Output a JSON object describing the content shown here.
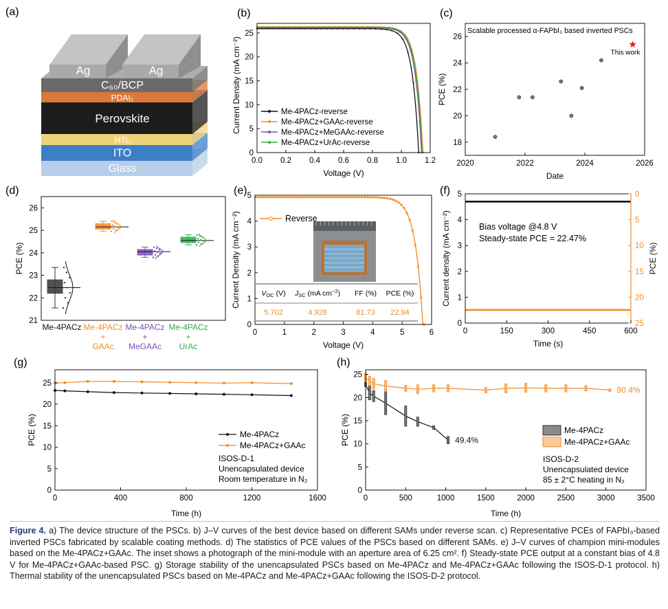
{
  "chart_data": [
    {
      "panel": "(a)",
      "type": "diagram",
      "layers": [
        {
          "label": "Ag",
          "color": "#a9a9a9"
        },
        {
          "label": "Ag",
          "color": "#a9a9a9"
        },
        {
          "label": "C60/BCP",
          "color": "#6a6a6a"
        },
        {
          "label": "PDAI2",
          "color": "#d9783a"
        },
        {
          "label": "Perovskite",
          "color": "#1c1c1c"
        },
        {
          "label": "HTL",
          "color": "#f0d27a"
        },
        {
          "label": "ITO",
          "color": "#3d7fc7"
        },
        {
          "label": "Glass",
          "color": "#b8cde8"
        }
      ]
    },
    {
      "panel": "(b)",
      "type": "line",
      "xlabel": "Voltage (V)",
      "ylabel": "Current Density (mA cm⁻²)",
      "xlim": [
        0,
        1.2
      ],
      "ylim": [
        0,
        27
      ],
      "xticks": [
        "0.0",
        "0.2",
        "0.4",
        "0.6",
        "0.8",
        "1.0",
        "1.2"
      ],
      "yticks": [
        "0",
        "5",
        "10",
        "15",
        "20",
        "25"
      ],
      "legend": "bottom-left",
      "series": [
        {
          "name": "Me-4PACz-reverse",
          "color": "#111111",
          "jsc": 25.9,
          "voc": 1.12
        },
        {
          "name": "Me-4PACz+GAAc-reverse",
          "color": "#f28c28",
          "jsc": 26.3,
          "voc": 1.15
        },
        {
          "name": "Me-4PACz+MeGAAc-reverse",
          "color": "#7a4fb4",
          "jsc": 26.1,
          "voc": 1.14
        },
        {
          "name": "Me-4PACz+UrAc-reverse",
          "color": "#2fae4a",
          "jsc": 26.2,
          "voc": 1.145
        }
      ]
    },
    {
      "panel": "(c)",
      "type": "scatter",
      "title": "Scalable processed α-FAPbI₃ based inverted PSCs",
      "xlabel": "Date",
      "ylabel": "PCE (%)",
      "xlim": [
        2020,
        2026
      ],
      "ylim": [
        17,
        27
      ],
      "xticks": [
        "2020",
        "2022",
        "2024",
        "2026"
      ],
      "yticks": [
        "18",
        "20",
        "22",
        "24",
        "26"
      ],
      "points": [
        {
          "x": 2021.0,
          "y": 18.4
        },
        {
          "x": 2021.8,
          "y": 21.4
        },
        {
          "x": 2022.25,
          "y": 21.4
        },
        {
          "x": 2023.2,
          "y": 22.6
        },
        {
          "x": 2023.55,
          "y": 20.0
        },
        {
          "x": 2023.9,
          "y": 22.1
        },
        {
          "x": 2024.55,
          "y": 24.2
        }
      ],
      "highlight": {
        "x": 2025.6,
        "y": 25.4,
        "label": "This work",
        "color": "#e31b23"
      }
    },
    {
      "panel": "(d)",
      "type": "box",
      "ylabel": "PCE (%)",
      "ylim": [
        21,
        26.5
      ],
      "yticks": [
        "21",
        "22",
        "23",
        "24",
        "25",
        "26"
      ],
      "categories": [
        "Me-4PACz",
        "Me-4PACz\n+\nGAAc",
        "Me-4PACz\n+\nMeGAAc",
        "Me-4PACz\n+\nUrAc"
      ],
      "groups": [
        {
          "name": "Me-4PACz",
          "color": "#333333",
          "min": 21.55,
          "q1": 22.2,
          "median": 22.45,
          "q3": 22.8,
          "max": 23.35
        },
        {
          "name": "Me-4PACz+GAAc",
          "color": "#f28c28",
          "min": 24.95,
          "q1": 25.05,
          "median": 25.15,
          "q3": 25.3,
          "max": 25.4
        },
        {
          "name": "Me-4PACz+MeGAAc",
          "color": "#7a4fb4",
          "min": 23.8,
          "q1": 23.9,
          "median": 24.05,
          "q3": 24.15,
          "max": 24.25
        },
        {
          "name": "Me-4PACz+UrAc",
          "color": "#2fae4a",
          "min": 24.35,
          "q1": 24.45,
          "median": 24.55,
          "q3": 24.7,
          "max": 24.8
        }
      ]
    },
    {
      "panel": "(e)",
      "type": "line",
      "xlabel": "Voltage (V)",
      "ylabel": "Current Density (mA cm⁻²)",
      "xlim": [
        0,
        6
      ],
      "ylim": [
        0,
        5
      ],
      "xticks": [
        "0",
        "1",
        "2",
        "3",
        "4",
        "5",
        "6"
      ],
      "yticks": [
        "0",
        "1",
        "2",
        "3",
        "4",
        "5"
      ],
      "series": [
        {
          "name": "Reverse",
          "color": "#f28c28",
          "jsc": 4.928,
          "voc": 5.702
        }
      ],
      "table": {
        "headers": [
          "V_OC (V)",
          "J_SC (mA cm⁻²)",
          "FF (%)",
          "PCE (%)"
        ],
        "values": [
          "5.702",
          "4.928",
          "81.73",
          "22.94"
        ]
      }
    },
    {
      "panel": "(f)",
      "type": "line",
      "xlabel": "Time (s)",
      "ylabel": "Current density (mA cm⁻²)",
      "y2label": "PCE (%)",
      "xlim": [
        0,
        600
      ],
      "ylim": [
        0,
        5
      ],
      "y2lim": [
        25,
        0
      ],
      "xticks": [
        "0",
        "150",
        "300",
        "450",
        "600"
      ],
      "yticks": [
        "0",
        "1",
        "2",
        "3",
        "4",
        "5"
      ],
      "y2ticks": [
        "0",
        "5",
        "10",
        "15",
        "20",
        "25"
      ],
      "annotation": [
        "Bias voltage @4.8 V",
        "Steady-state PCE = 22.47%"
      ],
      "series": [
        {
          "name": "Current density",
          "color": "#111111",
          "value": 4.7
        },
        {
          "name": "PCE",
          "color": "#f28c28",
          "value": 22.47
        }
      ]
    },
    {
      "panel": "(g)",
      "type": "line",
      "xlabel": "Time (h)",
      "ylabel": "PCE (%)",
      "xlim": [
        0,
        1600
      ],
      "ylim": [
        0,
        28
      ],
      "xticks": [
        "0",
        "400",
        "800",
        "1200",
        "1600"
      ],
      "yticks": [
        "0",
        "5",
        "10",
        "15",
        "20",
        "25"
      ],
      "legend": "bottom-right",
      "notes": [
        "ISOS-D-1",
        "Unencapsulated device",
        "Room temperature in N₂"
      ],
      "series": [
        {
          "name": "Me-4PACz",
          "color": "#111111",
          "x": [
            0,
            60,
            200,
            360,
            530,
            700,
            860,
            1030,
            1200,
            1440
          ],
          "y": [
            23.2,
            23.1,
            22.9,
            22.7,
            22.6,
            22.5,
            22.4,
            22.3,
            22.2,
            22.0
          ]
        },
        {
          "name": "Me-4PACz+GAAc",
          "color": "#f28c28",
          "x": [
            0,
            60,
            200,
            360,
            530,
            700,
            860,
            1030,
            1200,
            1440
          ],
          "y": [
            24.9,
            25.0,
            25.3,
            25.3,
            25.2,
            25.1,
            25.0,
            24.9,
            25.0,
            24.8
          ]
        }
      ]
    },
    {
      "panel": "(h)",
      "type": "line",
      "xlabel": "Time (h)",
      "ylabel": "PCE (%)",
      "xlim": [
        0,
        3500
      ],
      "ylim": [
        0,
        26
      ],
      "xticks": [
        "0",
        "500",
        "1000",
        "1500",
        "2000",
        "2500",
        "3000",
        "3500"
      ],
      "yticks": [
        "0",
        "5",
        "10",
        "15",
        "20",
        "25"
      ],
      "notes": [
        "ISOS-D-2",
        "Unencapsulated device",
        "85 ± 2°C heating in N₂"
      ],
      "series": [
        {
          "name": "Me-4PACz",
          "color": "#111111",
          "end_label": "49.4%",
          "x": [
            0,
            50,
            100,
            250,
            500,
            650,
            850,
            1030
          ],
          "y": [
            22.8,
            21.0,
            20.3,
            18.8,
            16.0,
            14.8,
            13.5,
            10.8
          ],
          "err": [
            0.4,
            1.5,
            1.2,
            2.5,
            2.2,
            1.0,
            0.4,
            0.8
          ]
        },
        {
          "name": "Me-4PACz+GAAc",
          "color": "#f28c28",
          "end_label": "90.4%",
          "x": [
            0,
            50,
            100,
            250,
            500,
            650,
            850,
            1030,
            1500,
            1750,
            2000,
            2250,
            2500,
            2750,
            3050
          ],
          "y": [
            24.3,
            23.6,
            23.0,
            22.5,
            22.0,
            21.8,
            22.0,
            22.0,
            21.6,
            22.0,
            22.1,
            22.0,
            22.0,
            22.0,
            21.6
          ],
          "err": [
            1.0,
            1.0,
            1.2,
            1.2,
            0.7,
            1.0,
            0.8,
            0.8,
            0.6,
            1.0,
            1.0,
            0.8,
            0.8,
            0.6,
            0.3
          ]
        }
      ]
    }
  ],
  "figure": {
    "panels": [
      "(a)",
      "(b)",
      "(c)",
      "(d)",
      "(e)",
      "(f)",
      "(g)",
      "(h)"
    ],
    "caption_label": "Figure 4.",
    "caption_text": "a) The device structure of the PSCs. b) J–V curves of the best device based on different SAMs under reverse scan. c) Representative PCEs of FAPbI₃-based inverted PSCs fabricated by scalable coating methods. d) The statistics of PCE values of the PSCs based on different SAMs. e) J–V curves of champion mini-modules based on the Me-4PACz+GAAc. The inset shows a photograph of the mini-module with an aperture area of 6.25 cm². f) Steady-state PCE output at a constant bias of 4.8 V for Me-4PACz+GAAc-based PSC. g) Storage stability of the unencapsulated PSCs based on Me-4PACz and Me-4PACz+GAAc following the ISOS-D-1 protocol. h) Thermal stability of the unencapsulated PSCs based on Me-4PACz and Me-4PACz+GAAc following the ISOS-D-2 protocol."
  }
}
